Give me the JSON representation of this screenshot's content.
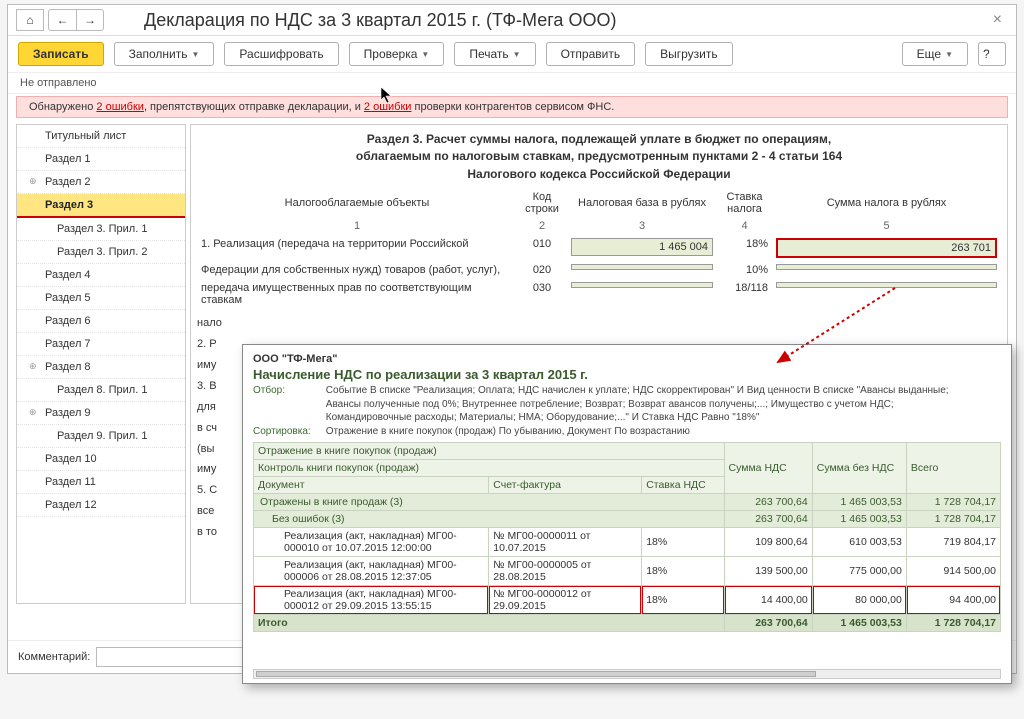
{
  "title": "Декларация по НДС за 3 квартал 2015 г. (ТФ-Мега ООО)",
  "toolbar": {
    "save": "Записать",
    "fill": "Заполнить",
    "decode": "Расшифровать",
    "check": "Проверка",
    "print": "Печать",
    "send": "Отправить",
    "export": "Выгрузить",
    "more": "Еще"
  },
  "status": "Не отправлено",
  "error_bar": {
    "prefix": "Обнаружено ",
    "link1": "2 ошибки",
    "middle": ", препятствующих отправке декларации, и ",
    "link2": "2 ошибки",
    "suffix": " проверки контрагентов сервисом ФНС."
  },
  "sidebar": [
    {
      "label": "Титульный лист",
      "indent": false,
      "active": false,
      "exp": ""
    },
    {
      "label": "Раздел 1",
      "indent": false,
      "active": false,
      "exp": ""
    },
    {
      "label": "Раздел 2",
      "indent": false,
      "active": false,
      "exp": "⊕"
    },
    {
      "label": "Раздел 3",
      "indent": false,
      "active": true,
      "exp": ""
    },
    {
      "label": "Раздел 3. Прил. 1",
      "indent": true,
      "active": false,
      "exp": ""
    },
    {
      "label": "Раздел 3. Прил. 2",
      "indent": true,
      "active": false,
      "exp": ""
    },
    {
      "label": "Раздел 4",
      "indent": false,
      "active": false,
      "exp": ""
    },
    {
      "label": "Раздел 5",
      "indent": false,
      "active": false,
      "exp": ""
    },
    {
      "label": "Раздел 6",
      "indent": false,
      "active": false,
      "exp": ""
    },
    {
      "label": "Раздел 7",
      "indent": false,
      "active": false,
      "exp": ""
    },
    {
      "label": "Раздел 8",
      "indent": false,
      "active": false,
      "exp": "⊕"
    },
    {
      "label": "Раздел 8. Прил. 1",
      "indent": true,
      "active": false,
      "exp": ""
    },
    {
      "label": "Раздел 9",
      "indent": false,
      "active": false,
      "exp": "⊕"
    },
    {
      "label": "Раздел 9. Прил. 1",
      "indent": true,
      "active": false,
      "exp": ""
    },
    {
      "label": "Раздел 10",
      "indent": false,
      "active": false,
      "exp": ""
    },
    {
      "label": "Раздел 11",
      "indent": false,
      "active": false,
      "exp": ""
    },
    {
      "label": "Раздел 12",
      "indent": false,
      "active": false,
      "exp": ""
    }
  ],
  "section": {
    "title_l1": "Раздел 3. Расчет суммы налога, подлежащей уплате в бюджет по операциям,",
    "title_l2": "облагаемым по налоговым ставкам, предусмотренным пунктами 2 - 4 статьи 164",
    "title_l3": "Налогового кодекса Российской Федерации",
    "headers": {
      "c1": "Налогооблагаемые объекты",
      "c2": "Код строки",
      "c3": "Налоговая база в рублях",
      "c4": "Ставка налога",
      "c5": "Сумма налога в рублях"
    },
    "numrow": {
      "c1": "1",
      "c2": "2",
      "c3": "3",
      "c4": "4",
      "c5": "5"
    },
    "rows": [
      {
        "label": "1. Реализация (передача на территории Российской",
        "code": "010",
        "base": "1 465 004",
        "rate": "18%",
        "tax": "263 701",
        "hl": true
      },
      {
        "label": "Федерации для собственных нужд) товаров (работ, услуг),",
        "code": "020",
        "base": "",
        "rate": "10%",
        "tax": "",
        "hl": false
      },
      {
        "label": "передача имущественных прав по соответствующим ставкам",
        "code": "030",
        "base": "",
        "rate": "18/118",
        "tax": "",
        "hl": false
      }
    ],
    "truncated": [
      "нало",
      "2. Р",
      "иму",
      "3. В",
      "для",
      "в сч",
      "(вы",
      "иму",
      "5. С",
      "все",
      "в то"
    ]
  },
  "footer": {
    "comment_label": "Комментарий:"
  },
  "popup": {
    "org": "ООО \"ТФ-Мега\"",
    "heading": "Начисление НДС по реализации  за 3 квартал 2015 г.",
    "filter_label": "Отбор:",
    "filter_text": "Событие В списке \"Реализация; Оплата; НДС начислен к уплате; НДС скорректирован\" И Вид ценности В списке \"Авансы выданные; Авансы полученные под 0%; Внутреннее потребление; Возврат; Возврат авансов получены;...; Имущество с учетом НДС; Командировочные расходы; Материалы; НМА; Оборудование;...\" И Ставка НДС Равно \"18%\"",
    "sort_label": "Сортировка:",
    "sort_text": "Отражение в книге покупок (продаж) По убыванию, Документ По возрастанию",
    "cols": {
      "c1a": "Отражение в книге покупок (продаж)",
      "c1b": "Контроль книги покупок (продаж)",
      "c1c": "Документ",
      "c2": "Счет-фактура",
      "c3": "Ставка НДС",
      "c4": "Сумма НДС",
      "c5": "Сумма без НДС",
      "c6": "Всего"
    },
    "group1": {
      "label": "Отражены в книге продаж (3)",
      "s4": "263 700,64",
      "s5": "1 465 003,53",
      "s6": "1 728 704,17"
    },
    "group2": {
      "label": "Без ошибок (3)",
      "s4": "263 700,64",
      "s5": "1 465 003,53",
      "s6": "1 728 704,17"
    },
    "rows": [
      {
        "doc": "Реализация (акт, накладная) МГ00-000010 от 10.07.2015 12:00:00",
        "sf": "№ МГ00-0000011 от 10.07.2015",
        "rate": "18%",
        "s4": "109 800,64",
        "s5": "610 003,53",
        "s6": "719 804,17",
        "hl": false
      },
      {
        "doc": "Реализация (акт, накладная) МГ00-000006 от 28.08.2015 12:37:05",
        "sf": "№ МГ00-0000005 от 28.08.2015",
        "rate": "18%",
        "s4": "139 500,00",
        "s5": "775 000,00",
        "s6": "914 500,00",
        "hl": false
      },
      {
        "doc": "Реализация (акт, накладная) МГ00-000012 от 29.09.2015 13:55:15",
        "sf": "№ МГ00-0000012 от 29.09.2015",
        "rate": "18%",
        "s4": "14 400,00",
        "s5": "80 000,00",
        "s6": "94 400,00",
        "hl": true
      }
    ],
    "total": {
      "label": "Итого",
      "s4": "263 700,64",
      "s5": "1 465 003,53",
      "s6": "1 728 704,17"
    }
  }
}
